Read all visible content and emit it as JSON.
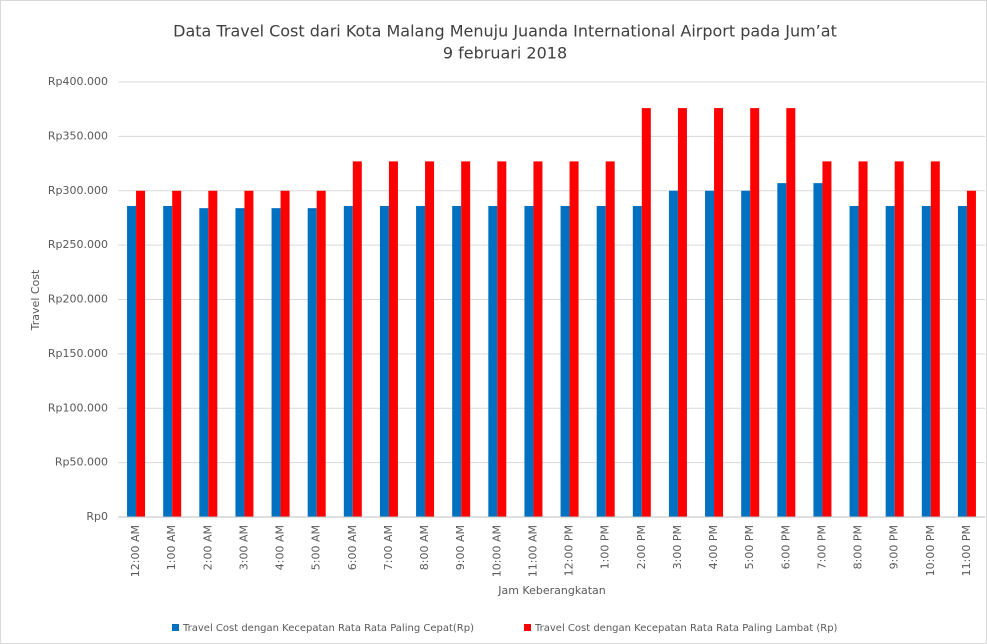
{
  "chart_data": {
    "type": "bar",
    "title": [
      "Data Travel Cost dari Kota Malang Menuju Juanda International Airport pada Jum’at",
      "9 februari 2018"
    ],
    "x_label": "Jam Keberangkatan",
    "y_label": "Travel Cost",
    "categories": [
      "12:00 AM",
      "1:00 AM",
      "2:00 AM",
      "3:00 AM",
      "4:00 AM",
      "5:00 AM",
      "6:00 AM",
      "7:00 AM",
      "8:00 AM",
      "9:00 AM",
      "10:00 AM",
      "11:00 AM",
      "12:00 PM",
      "1:00 PM",
      "2:00 PM",
      "3:00 PM",
      "4:00 PM",
      "5:00 PM",
      "6:00 PM",
      "7:00 PM",
      "8:00 PM",
      "9:00 PM",
      "10:00 PM",
      "11:00 PM"
    ],
    "series": [
      {
        "name": "Travel Cost dengan Kecepatan Rata Rata Paling Cepat(Rp)",
        "color": "#0070c0",
        "values": [
          286000,
          286000,
          284000,
          284000,
          284000,
          284000,
          286000,
          286000,
          286000,
          286000,
          286000,
          286000,
          286000,
          286000,
          286000,
          300000,
          300000,
          300000,
          307000,
          307000,
          286000,
          286000,
          286000,
          286000
        ]
      },
      {
        "name": "Travel Cost dengan Kecepatan Rata Rata Paling Lambat (Rp)",
        "color": "#ff0000",
        "values": [
          300000,
          300000,
          300000,
          300000,
          300000,
          300000,
          327000,
          327000,
          327000,
          327000,
          327000,
          327000,
          327000,
          327000,
          376000,
          376000,
          376000,
          376000,
          376000,
          327000,
          327000,
          327000,
          327000,
          300000
        ]
      }
    ],
    "ylim": [
      0,
      400000
    ],
    "yticks": [
      {
        "value": 0,
        "label": "Rp0"
      },
      {
        "value": 50000,
        "label": "Rp50.000"
      },
      {
        "value": 100000,
        "label": "Rp100.000"
      },
      {
        "value": 150000,
        "label": "Rp150.000"
      },
      {
        "value": 200000,
        "label": "Rp200.000"
      },
      {
        "value": 250000,
        "label": "Rp250.000"
      },
      {
        "value": 300000,
        "label": "Rp300.000"
      },
      {
        "value": 350000,
        "label": "Rp350.000"
      },
      {
        "value": 400000,
        "label": "Rp400.000"
      }
    ],
    "grid": true,
    "legend": "bottom"
  }
}
